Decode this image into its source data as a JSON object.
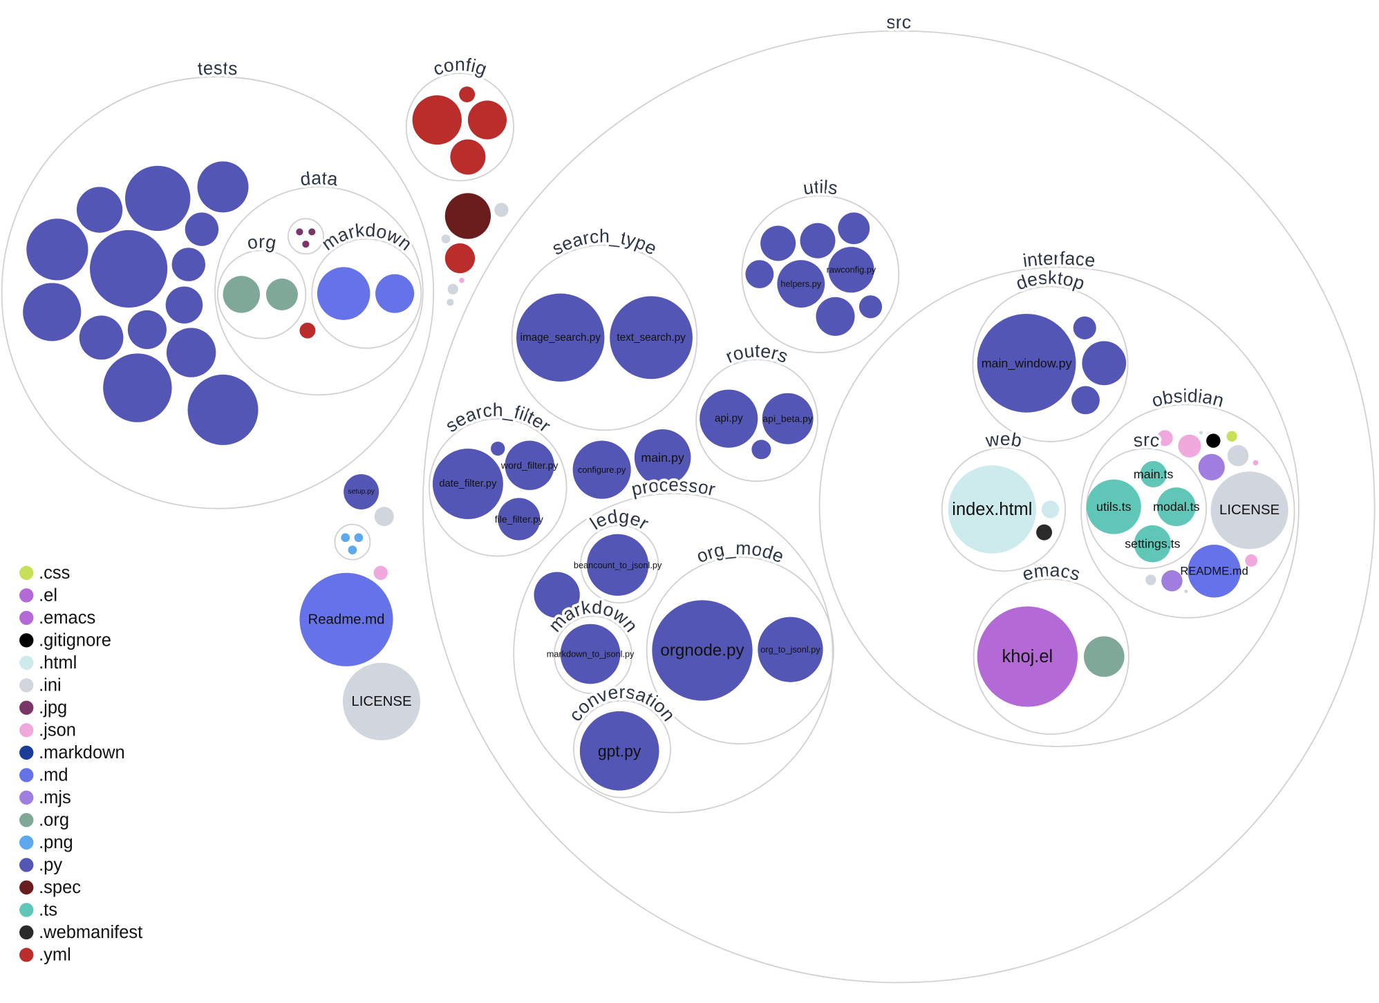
{
  "legend": [
    {
      "ext": ".css",
      "color": "#c6e05a"
    },
    {
      "ext": ".el",
      "color": "#b46ad6"
    },
    {
      "ext": ".emacs",
      "color": "#b46ad6"
    },
    {
      "ext": ".gitignore",
      "color": "#000000"
    },
    {
      "ext": ".html",
      "color": "#cdeaec"
    },
    {
      "ext": ".ini",
      "color": "#d0d5de"
    },
    {
      "ext": ".jpg",
      "color": "#7a3669"
    },
    {
      "ext": ".json",
      "color": "#f1a8dc"
    },
    {
      "ext": ".markdown",
      "color": "#1b3d97"
    },
    {
      "ext": ".md",
      "color": "#6673e8"
    },
    {
      "ext": ".mjs",
      "color": "#a07ee0"
    },
    {
      "ext": ".org",
      "color": "#80a899"
    },
    {
      "ext": ".png",
      "color": "#5ea8ef"
    },
    {
      "ext": ".py",
      "color": "#5456b5"
    },
    {
      "ext": ".spec",
      "color": "#6b1d1d"
    },
    {
      "ext": ".ts",
      "color": "#60c7b8"
    },
    {
      "ext": ".webmanifest",
      "color": "#2a2a2a"
    },
    {
      "ext": ".yml",
      "color": "#bb2d2b"
    }
  ],
  "folders": [
    {
      "name": "tests"
    },
    {
      "name": "data"
    },
    {
      "name": "org"
    },
    {
      "name": "markdown"
    },
    {
      "name": ""
    },
    {
      "name": "config"
    },
    {
      "name": "src"
    },
    {
      "name": "utils"
    },
    {
      "name": "search_type"
    },
    {
      "name": "routers"
    },
    {
      "name": "search_filter"
    },
    {
      "name": "processor"
    },
    {
      "name": "ledger"
    },
    {
      "name": "markdown"
    },
    {
      "name": "org_mode"
    },
    {
      "name": "conversation"
    },
    {
      "name": "interface"
    },
    {
      "name": "desktop"
    },
    {
      "name": "web"
    },
    {
      "name": "obsidian"
    },
    {
      "name": "src"
    },
    {
      "name": "emacs"
    },
    {
      "name": ""
    }
  ],
  "files": [
    {
      "ext": ".py"
    },
    {
      "ext": ".py"
    },
    {
      "ext": ".py"
    },
    {
      "ext": ".py"
    },
    {
      "ext": ".py"
    },
    {
      "ext": ".py"
    },
    {
      "ext": ".py"
    },
    {
      "ext": ".py"
    },
    {
      "ext": ".py"
    },
    {
      "ext": ".py"
    },
    {
      "ext": ".py"
    },
    {
      "ext": ".py"
    },
    {
      "ext": ".py"
    },
    {
      "ext": ".py"
    },
    {
      "ext": ".org"
    },
    {
      "ext": ".org"
    },
    {
      "ext": ".md"
    },
    {
      "ext": ".md"
    },
    {
      "ext": ".yml"
    },
    {
      "ext": ".jpg"
    },
    {
      "ext": ".jpg"
    },
    {
      "ext": ".jpg"
    },
    {
      "ext": ".yml"
    },
    {
      "ext": ".yml"
    },
    {
      "ext": ".yml"
    },
    {
      "ext": ".yml"
    },
    {
      "ext": ".spec"
    },
    {
      "ext": ".ini"
    },
    {
      "ext": ".ini"
    },
    {
      "ext": ".yml"
    },
    {
      "ext": ".json"
    },
    {
      "ext": ".ini"
    },
    {
      "ext": ".ini"
    },
    {
      "ext": ".py",
      "label": "setup.py"
    },
    {
      "ext": ".ini"
    },
    {
      "ext": ".png"
    },
    {
      "ext": ".png"
    },
    {
      "ext": ".png"
    },
    {
      "ext": ".json"
    },
    {
      "ext": ".md",
      "label": "Readme.md"
    },
    {
      "ext": ".ini",
      "label": "LICENSE"
    },
    {
      "ext": ".py",
      "label": "image_search.py"
    },
    {
      "ext": ".py",
      "label": "text_search.py"
    },
    {
      "ext": ".py"
    },
    {
      "ext": ".py"
    },
    {
      "ext": ".py"
    },
    {
      "ext": ".py"
    },
    {
      "ext": ".py",
      "label": "helpers.py"
    },
    {
      "ext": ".py",
      "label": "rawconfig.py"
    },
    {
      "ext": ".py"
    },
    {
      "ext": ".py"
    },
    {
      "ext": ".py",
      "label": "api.py"
    },
    {
      "ext": ".py",
      "label": "api_beta.py"
    },
    {
      "ext": ".py"
    },
    {
      "ext": ".py",
      "label": "date_filter.py"
    },
    {
      "ext": ".py",
      "label": "word_filter.py"
    },
    {
      "ext": ".py",
      "label": "file_filter.py"
    },
    {
      "ext": ".py"
    },
    {
      "ext": ".py",
      "label": "configure.py"
    },
    {
      "ext": ".py",
      "label": "main.py"
    },
    {
      "ext": ".py",
      "label": "beancount_to_jsonl.py"
    },
    {
      "ext": ".py"
    },
    {
      "ext": ".py",
      "label": "markdown_to_jsonl.py"
    },
    {
      "ext": ".py",
      "label": "orgnode.py"
    },
    {
      "ext": ".py",
      "label": "org_to_jsonl.py"
    },
    {
      "ext": ".py",
      "label": "gpt.py"
    },
    {
      "ext": ".py",
      "label": "main_window.py"
    },
    {
      "ext": ".py"
    },
    {
      "ext": ".py"
    },
    {
      "ext": ".py"
    },
    {
      "ext": ".html",
      "label": "index.html"
    },
    {
      "ext": ".html"
    },
    {
      "ext": ".webmanifest"
    },
    {
      "ext": ".png"
    },
    {
      "ext": ".json"
    },
    {
      "ext": ".json"
    },
    {
      "ext": ".ini"
    },
    {
      "ext": ".gitignore"
    },
    {
      "ext": ".css"
    },
    {
      "ext": ".mjs"
    },
    {
      "ext": ".ini"
    },
    {
      "ext": ".json"
    },
    {
      "ext": ".ini",
      "label": "LICENSE"
    },
    {
      "ext": ".md",
      "label": "README.md"
    },
    {
      "ext": ".json"
    },
    {
      "ext": ".mjs"
    },
    {
      "ext": ".ini"
    },
    {
      "ext": ".ini"
    },
    {
      "ext": ".ts",
      "label": "main.ts"
    },
    {
      "ext": ".ts",
      "label": "utils.ts"
    },
    {
      "ext": ".ts",
      "label": "modal.ts"
    },
    {
      "ext": ".ts",
      "label": "settings.ts"
    },
    {
      "ext": ".el",
      "label": "khoj.el"
    },
    {
      "ext": ".org"
    }
  ]
}
